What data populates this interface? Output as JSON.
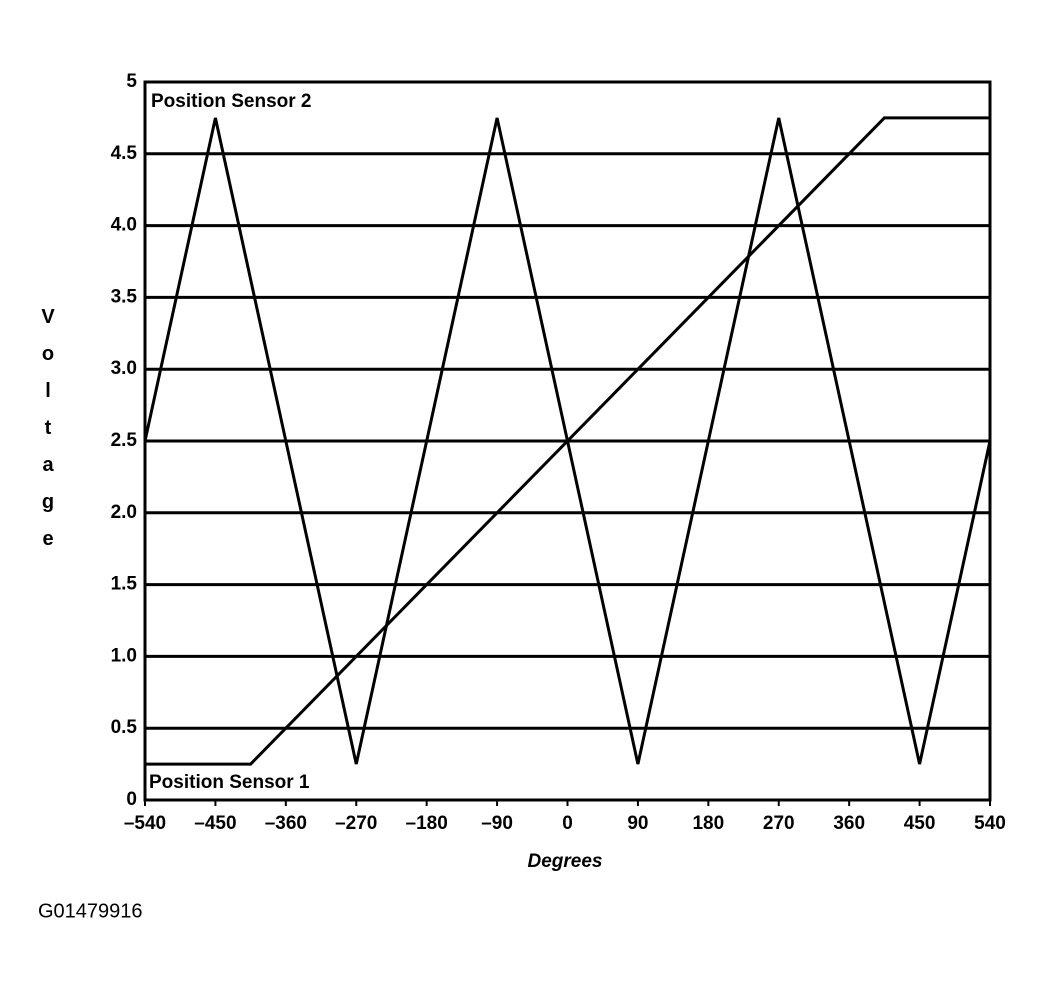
{
  "chart_data": {
    "type": "line",
    "x_label": "Degrees",
    "y_label": "Voltage",
    "caption": "G01479916",
    "xlim": [
      -540,
      540
    ],
    "xticks": [
      {
        "value": -540,
        "label": "–540"
      },
      {
        "value": -450,
        "label": "–450"
      },
      {
        "value": -360,
        "label": "–360"
      },
      {
        "value": -270,
        "label": "–270"
      },
      {
        "value": -180,
        "label": "–180"
      },
      {
        "value": -90,
        "label": "–90"
      },
      0,
      90,
      180,
      270,
      360,
      450,
      540
    ],
    "ylim": [
      0,
      5
    ],
    "yticks": [
      0,
      0.5,
      {
        "value": 1,
        "label": "1.0"
      },
      1.5,
      {
        "value": 2,
        "label": "2.0"
      },
      2.5,
      {
        "value": 3,
        "label": "3.0"
      },
      3.5,
      {
        "value": 4,
        "label": "4.0"
      },
      4.5,
      5
    ],
    "grid": true,
    "series": [
      {
        "name": "Position Sensor 2",
        "color": "#000000",
        "x": [
          -540,
          -450,
          -270,
          -90,
          90,
          270,
          450,
          540
        ],
        "values": [
          2.5,
          4.75,
          0.25,
          4.75,
          0.25,
          4.75,
          0.25,
          2.5
        ]
      },
      {
        "name": "Position Sensor 1",
        "color": "#000000",
        "x": [
          -540,
          -405,
          405,
          540
        ],
        "values": [
          0.25,
          0.25,
          4.75,
          4.75
        ]
      }
    ]
  }
}
